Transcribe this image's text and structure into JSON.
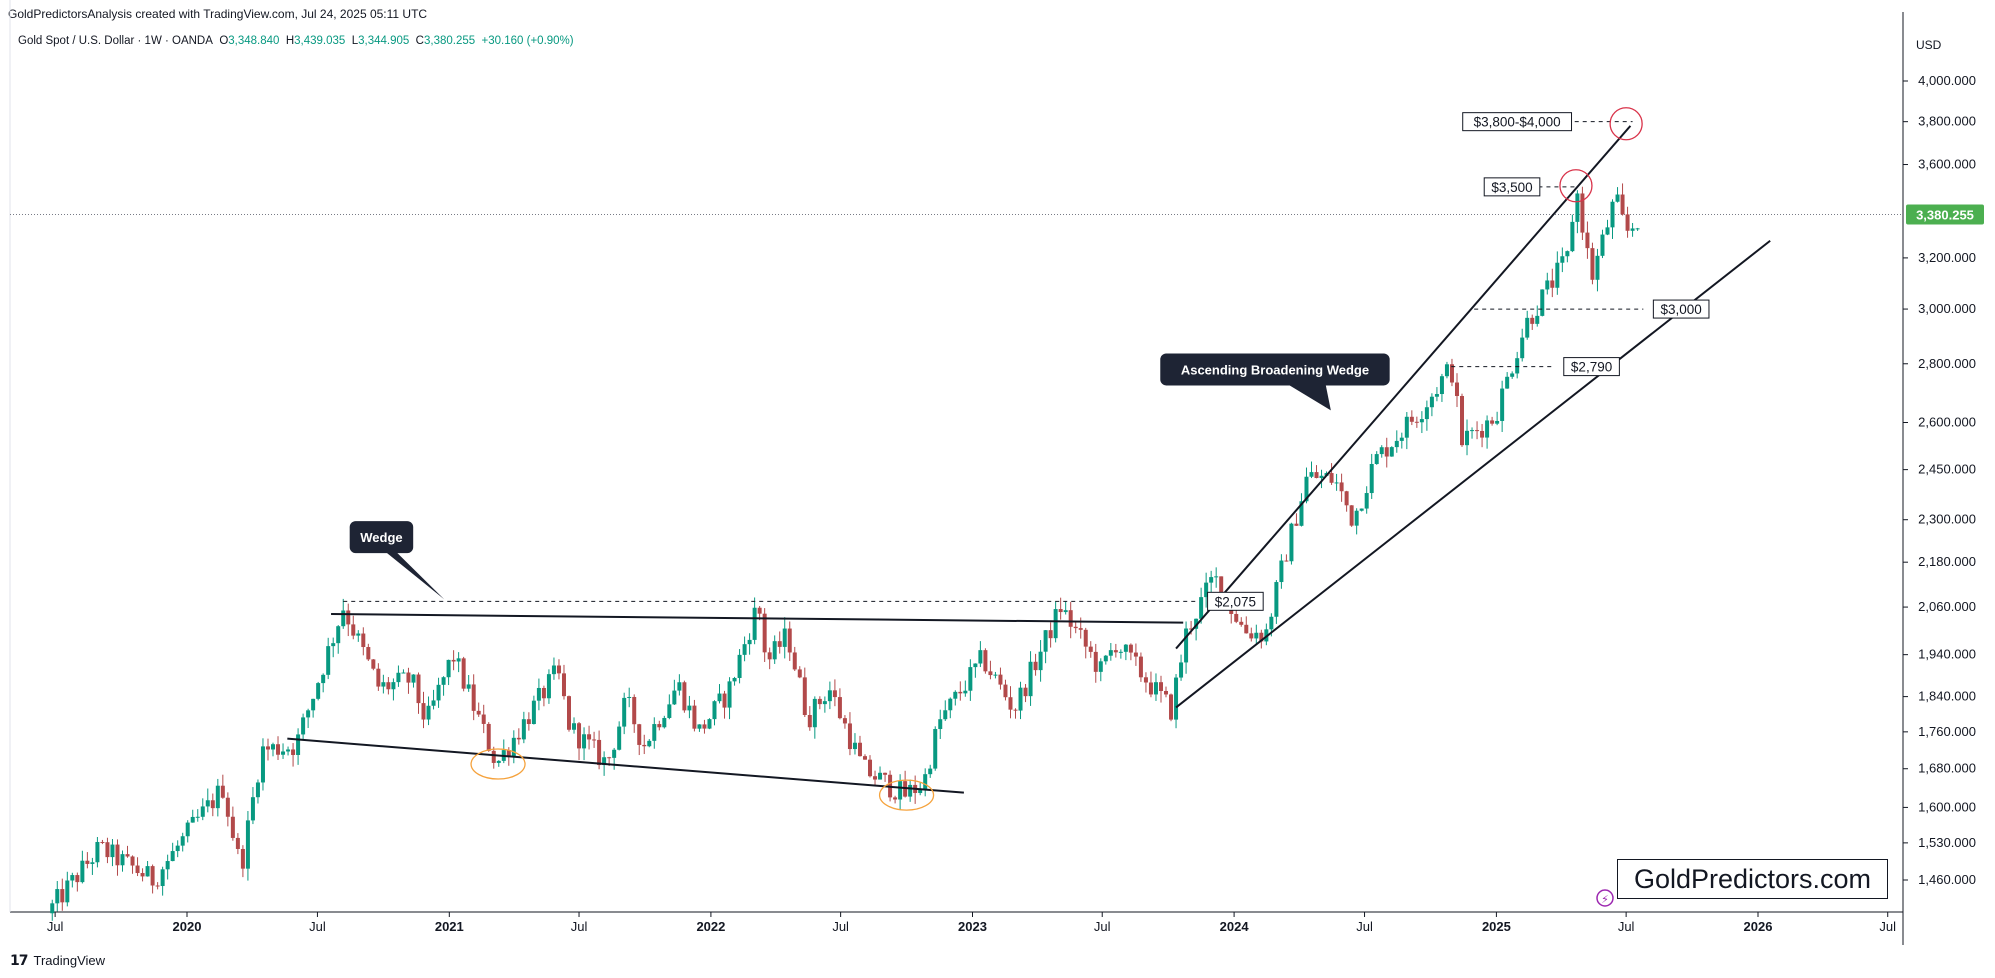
{
  "header": {
    "publisher_line": "GoldPredictorsAnalysis created with TradingView.com, Jul 24, 2025 05:11 UTC"
  },
  "legend": {
    "symbol": "Gold Spot / U.S. Dollar · 1W · OANDA",
    "open_label": "O",
    "open": "3,348.840",
    "high_label": "H",
    "high": "3,439.035",
    "low_label": "L",
    "low": "3,344.905",
    "close_label": "C",
    "close": "3,380.255",
    "change": "+30.160 (+0.90%)"
  },
  "currency": "USD",
  "last_price": {
    "label": "3,380.255",
    "value": 3380.255,
    "color": "#4caf50"
  },
  "footer": {
    "brand": "TradingView"
  },
  "watermark": "GoldPredictors.com",
  "colors": {
    "up": "#089981",
    "down": "#b2494a",
    "line": "#131722",
    "circle_red": "#d9334a",
    "circle_orange": "#f5a23c",
    "callout_bg": "#1e2434"
  },
  "chart_data": {
    "type": "candlestick",
    "title": "",
    "scale": "log",
    "ylim": [
      1400,
      4150
    ],
    "x_range": [
      "2019-06-01",
      "2026-10-01"
    ],
    "y_ticks": [
      {
        "value": 1460,
        "label": "1,460.000"
      },
      {
        "value": 1530,
        "label": "1,530.000"
      },
      {
        "value": 1600,
        "label": "1,600.000"
      },
      {
        "value": 1680,
        "label": "1,680.000"
      },
      {
        "value": 1760,
        "label": "1,760.000"
      },
      {
        "value": 1840,
        "label": "1,840.000"
      },
      {
        "value": 1940,
        "label": "1,940.000"
      },
      {
        "value": 2060,
        "label": "2,060.000"
      },
      {
        "value": 2180,
        "label": "2,180.000"
      },
      {
        "value": 2300,
        "label": "2,300.000"
      },
      {
        "value": 2450,
        "label": "2,450.000"
      },
      {
        "value": 2600,
        "label": "2,600.000"
      },
      {
        "value": 2800,
        "label": "2,800.000"
      },
      {
        "value": 3000,
        "label": "3,000.000"
      },
      {
        "value": 3200,
        "label": "3,200.000"
      },
      {
        "value": 3600,
        "label": "3,600.000"
      },
      {
        "value": 3800,
        "label": "3,800.000"
      },
      {
        "value": 4000,
        "label": "4,000.000"
      }
    ],
    "x_ticks": [
      {
        "date": "2019-07-01",
        "label": "Jul",
        "year": false
      },
      {
        "date": "2020-01-01",
        "label": "2020",
        "year": true
      },
      {
        "date": "2020-07-01",
        "label": "Jul",
        "year": false
      },
      {
        "date": "2021-01-01",
        "label": "2021",
        "year": true
      },
      {
        "date": "2021-07-01",
        "label": "Jul",
        "year": false
      },
      {
        "date": "2022-01-01",
        "label": "2022",
        "year": true
      },
      {
        "date": "2022-07-01",
        "label": "Jul",
        "year": false
      },
      {
        "date": "2023-01-01",
        "label": "2023",
        "year": true
      },
      {
        "date": "2023-07-01",
        "label": "Jul",
        "year": false
      },
      {
        "date": "2024-01-01",
        "label": "2024",
        "year": true
      },
      {
        "date": "2024-07-01",
        "label": "Jul",
        "year": false
      },
      {
        "date": "2025-01-01",
        "label": "2025",
        "year": true
      },
      {
        "date": "2025-07-01",
        "label": "Jul",
        "year": false
      },
      {
        "date": "2026-01-01",
        "label": "2026",
        "year": true
      },
      {
        "date": "2026-07-01",
        "label": "Jul",
        "year": false
      }
    ],
    "price_path": [
      [
        "2019-06-20",
        1400
      ],
      [
        "2019-09-01",
        1520
      ],
      [
        "2019-11-15",
        1460
      ],
      [
        "2020-01-08",
        1560
      ],
      [
        "2020-02-20",
        1640
      ],
      [
        "2020-03-16",
        1480
      ],
      [
        "2020-04-14",
        1720
      ],
      [
        "2020-06-01",
        1730
      ],
      [
        "2020-08-06",
        2060
      ],
      [
        "2020-09-25",
        1860
      ],
      [
        "2020-11-09",
        1880
      ],
      [
        "2020-11-30",
        1780
      ],
      [
        "2021-01-06",
        1940
      ],
      [
        "2021-03-08",
        1690
      ],
      [
        "2021-06-01",
        1900
      ],
      [
        "2021-06-18",
        1770
      ],
      [
        "2021-08-09",
        1690
      ],
      [
        "2021-09-05",
        1830
      ],
      [
        "2021-09-29",
        1730
      ],
      [
        "2021-11-16",
        1870
      ],
      [
        "2021-12-15",
        1760
      ],
      [
        "2022-01-25",
        1850
      ],
      [
        "2022-03-08",
        2070
      ],
      [
        "2022-03-20",
        1920
      ],
      [
        "2022-04-18",
        1990
      ],
      [
        "2022-05-16",
        1790
      ],
      [
        "2022-06-15",
        1860
      ],
      [
        "2022-08-01",
        1680
      ],
      [
        "2022-09-28",
        1625
      ],
      [
        "2022-10-25",
        1650
      ],
      [
        "2022-11-15",
        1780
      ],
      [
        "2023-01-15",
        1930
      ],
      [
        "2023-02-28",
        1810
      ],
      [
        "2023-05-04",
        2060
      ],
      [
        "2023-06-29",
        1900
      ],
      [
        "2023-07-20",
        1970
      ],
      [
        "2023-10-05",
        1810
      ],
      [
        "2023-10-27",
        2000
      ],
      [
        "2023-12-04",
        2140
      ],
      [
        "2024-01-15",
        2000
      ],
      [
        "2024-02-14",
        1990
      ],
      [
        "2024-03-10",
        2180
      ],
      [
        "2024-04-12",
        2430
      ],
      [
        "2024-05-20",
        2420
      ],
      [
        "2024-06-15",
        2300
      ],
      [
        "2024-07-16",
        2480
      ],
      [
        "2024-09-20",
        2650
      ],
      [
        "2024-10-30",
        2790
      ],
      [
        "2024-11-14",
        2540
      ],
      [
        "2024-12-30",
        2620
      ],
      [
        "2025-02-10",
        2940
      ],
      [
        "2025-04-10",
        3200
      ],
      [
        "2025-04-22",
        3500
      ],
      [
        "2025-05-14",
        3120
      ],
      [
        "2025-06-16",
        3450
      ],
      [
        "2025-07-01",
        3300
      ],
      [
        "2025-07-22",
        3380
      ]
    ],
    "annotations": {
      "horizontal_levels": [
        {
          "label": "$2,075",
          "value": 2075,
          "from": "2020-08-06",
          "to": "2023-11-10",
          "label_at": "2023-11-25"
        },
        {
          "label": "$2,790",
          "value": 2790,
          "from": "2024-10-30",
          "to": "2025-03-20",
          "label_at": "2025-04-05"
        },
        {
          "label": "$3,000",
          "value": 3000,
          "from": "2024-12-01",
          "to": "2025-07-25",
          "label_at": "2025-08-08"
        },
        {
          "label": "$3,500",
          "value": 3500,
          "from": "2025-01-15",
          "to": "2025-04-22",
          "label_at": "2024-12-15"
        },
        {
          "label": "$3,800-$4,000",
          "value": 3800,
          "from": "2024-11-15",
          "to": "2025-07-10",
          "label_at": "2024-11-15"
        }
      ],
      "callouts": [
        {
          "text": "Wedge",
          "at": "2020-08-15",
          "value": 2250,
          "pointer_to_date": "2020-12-25",
          "pointer_to_value": 2080
        },
        {
          "text": "Ascending Broadening Wedge",
          "at": "2023-09-20",
          "value": 2780,
          "pointer_to_date": "2024-05-15",
          "pointer_to_value": 2640
        }
      ],
      "trendlines": [
        {
          "name": "wedge-top",
          "from": [
            "2020-07-20",
            2042
          ],
          "to": [
            "2023-10-22",
            2020
          ]
        },
        {
          "name": "wedge-bottom",
          "from": [
            "2020-05-20",
            1745
          ],
          "to": [
            "2022-12-20",
            1630
          ]
        },
        {
          "name": "broadening-top",
          "from": [
            "2023-10-12",
            1955
          ],
          "to": [
            "2025-07-07",
            3780
          ]
        },
        {
          "name": "broadening-bottom",
          "from": [
            "2023-10-12",
            1815
          ],
          "to": [
            "2026-01-18",
            3270
          ]
        }
      ],
      "circles": [
        {
          "color": "red",
          "date": "2025-04-22",
          "value": 3505
        },
        {
          "color": "red",
          "date": "2025-07-01",
          "value": 3790
        },
        {
          "color": "orange",
          "date": "2021-03-10",
          "value": 1690
        },
        {
          "color": "orange",
          "date": "2022-10-01",
          "value": 1625
        }
      ]
    }
  }
}
